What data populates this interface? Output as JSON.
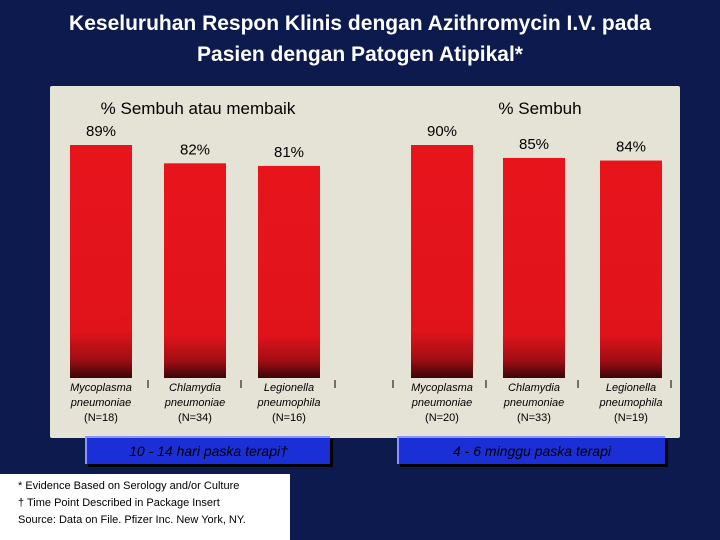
{
  "slide": {
    "title_line1": "Keseluruhan Respon Klinis dengan Azithromycin I.V. pada",
    "title_line2": "Pasien dengan Patogen Atipikal*"
  },
  "colors": {
    "background": "#0c1a4e",
    "bar": "#e8141c",
    "caption": "#1a2fd6"
  },
  "chart_data": [
    {
      "type": "bar",
      "title": "% Sembuh atau membaik",
      "categories": [
        "Mycoplasma pneumoniae",
        "Chlamydia pneumoniae",
        "Legionella pneumophila"
      ],
      "category_lines": [
        [
          "Mycoplasma",
          "pneumoniae",
          "(N=18)"
        ],
        [
          "Chlamydia",
          "pneumoniae",
          "(N=34)"
        ],
        [
          "Legionella",
          "pneumophila",
          "(N=16)"
        ]
      ],
      "values": [
        89,
        82,
        81
      ],
      "value_labels": [
        "89%",
        "82%",
        "81%"
      ],
      "ylim": [
        0,
        89
      ],
      "caption": "10 - 14 hari paska terapi†"
    },
    {
      "type": "bar",
      "title": "% Sembuh",
      "categories": [
        "Mycoplasma pneumoniae",
        "Chlamydia pneumoniae",
        "Legionella pneumophila"
      ],
      "category_lines": [
        [
          "Mycoplasma",
          "pneumoniae",
          "(N=20)"
        ],
        [
          "Chlamydia",
          "pneumoniae",
          "(N=33)"
        ],
        [
          "Legionella",
          "pneumophila",
          "(N=19)"
        ]
      ],
      "values": [
        90,
        85,
        84
      ],
      "value_labels": [
        "90%",
        "85%",
        "84%"
      ],
      "ylim": [
        0,
        90
      ],
      "caption": "4 - 6 minggu paska terapi"
    }
  ],
  "footnotes": [
    "* Evidence Based on Serology and/or Culture",
    "† Time Point Described in Package Insert",
    "Source: Data on File.  Pfizer Inc. New York, NY."
  ]
}
